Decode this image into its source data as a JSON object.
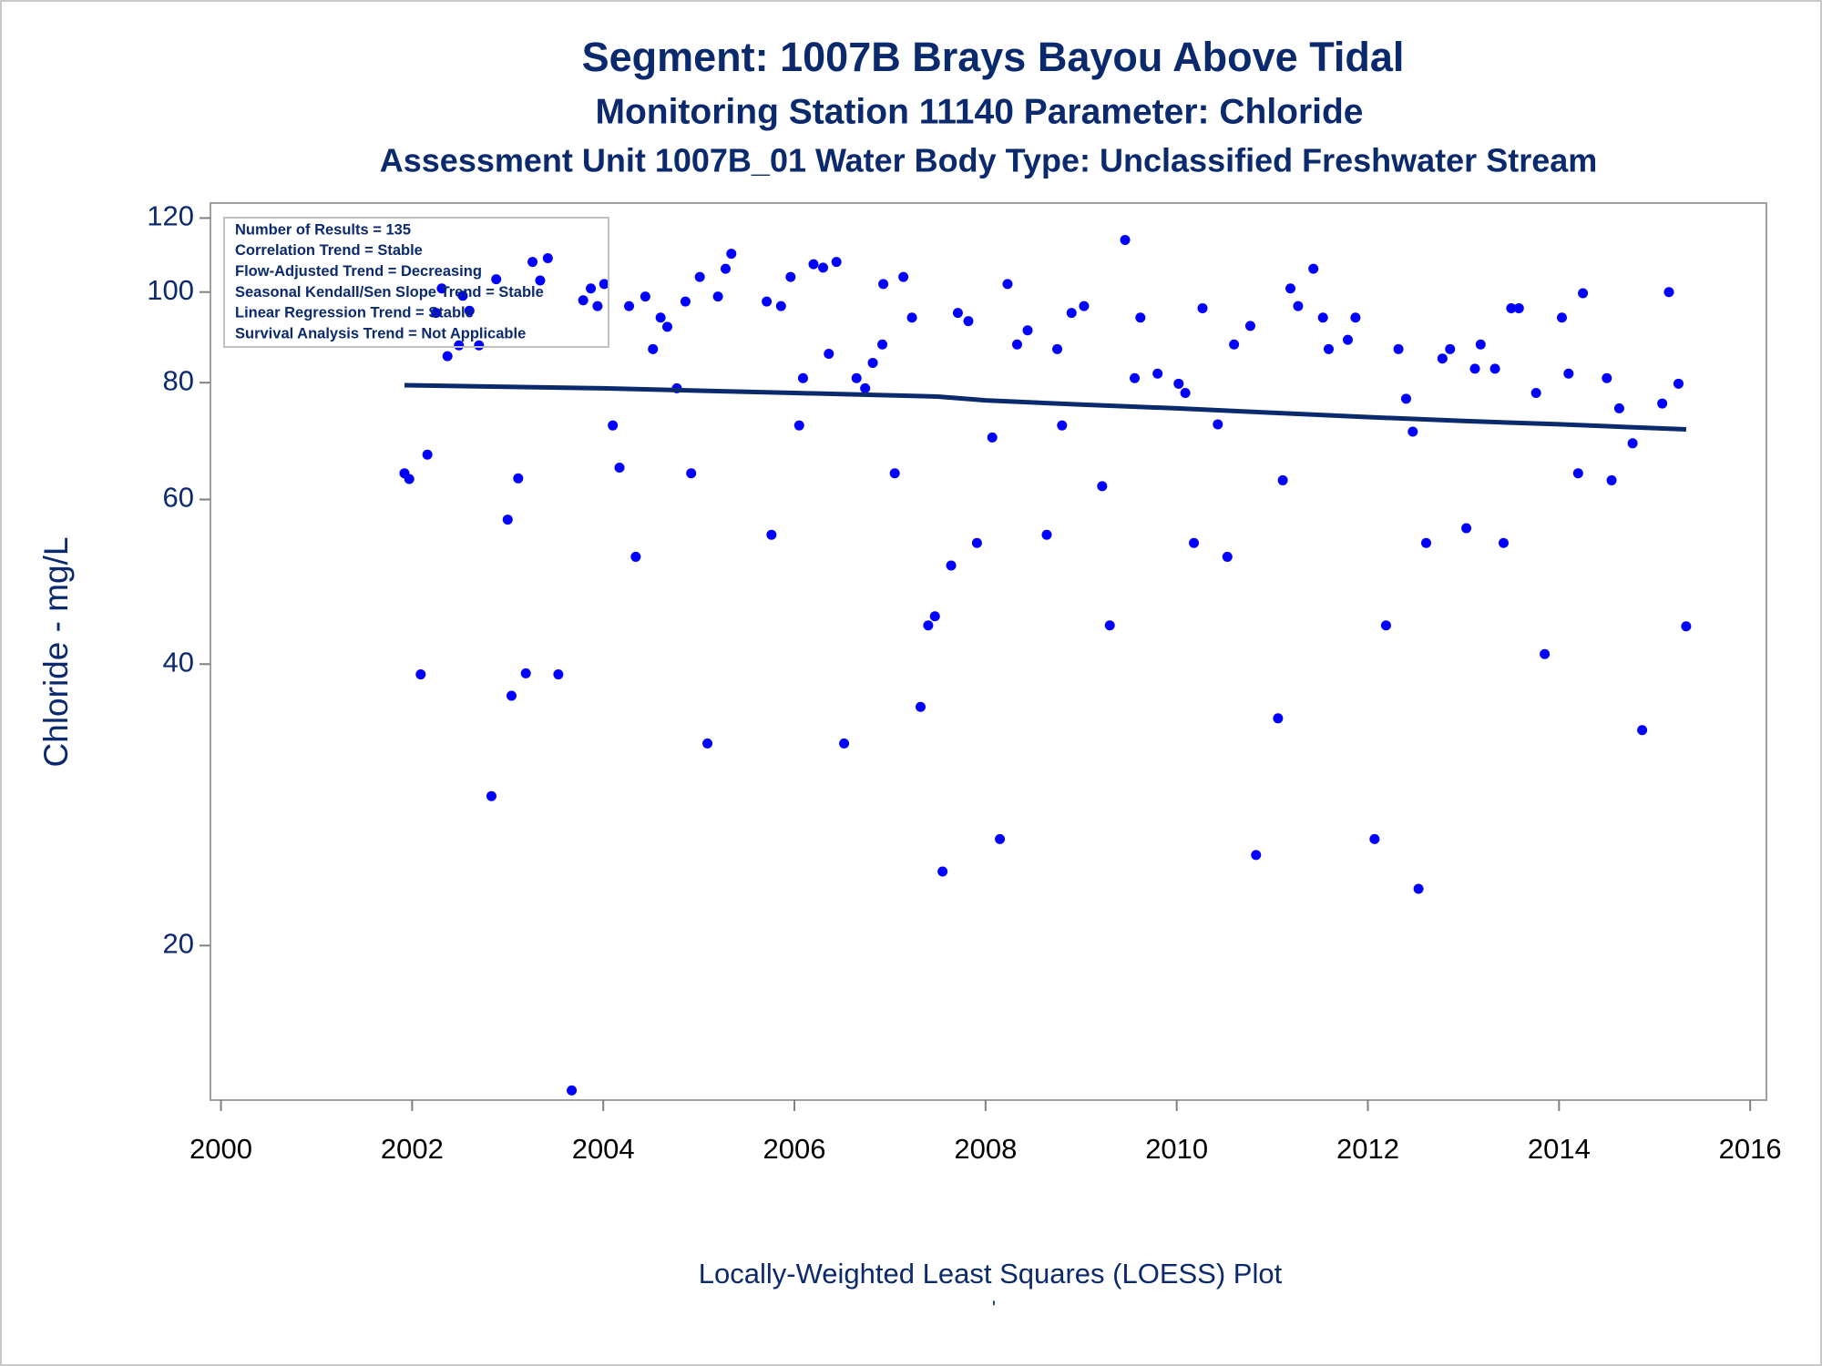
{
  "chart_data": {
    "type": "scatter",
    "title": "Segment: 1007B  Brays Bayou Above Tidal",
    "subtitle": "Monitoring Station 11140 Parameter: Chloride",
    "subtitle2": "Assessment Unit 1007B_01   Water Body Type: Unclassified Freshwater Stream",
    "y_label": "Chloride - mg/L",
    "footnote": "Locally-Weighted Least Squares (LOESS) Plot",
    "footnote_mark": "'",
    "stats_box": [
      "Number of Results = 135",
      "Correlation Trend = Stable",
      "Flow-Adjusted Trend = Decreasing",
      "Seasonal Kendall/Sen Slope Trend = Stable",
      "Linear Regression Trend = Stable",
      "Survival Analysis Trend = Not Applicable"
    ],
    "xlim": [
      1999.89,
      2016.17
    ],
    "xticks": [
      2000,
      2002,
      2004,
      2006,
      2008,
      2010,
      2012,
      2014,
      2016
    ],
    "ylim": [
      13.67,
      124.5
    ],
    "yticks": [
      20,
      40,
      60,
      80,
      100,
      120
    ],
    "ylog": true,
    "series": [
      {
        "type": "scatter",
        "color": "#0000ff",
        "x": [
          2001.92,
          2001.97,
          2002.09,
          2002.16,
          2002.25,
          2002.31,
          2002.37,
          2002.49,
          2002.53,
          2002.6,
          2002.7,
          2002.83,
          2002.88,
          2003.0,
          2003.04,
          2003.11,
          2003.19,
          2003.26,
          2003.34,
          2003.42,
          2003.53,
          2003.67,
          2003.79,
          2003.87,
          2003.94,
          2004.01,
          2004.1,
          2004.17,
          2004.27,
          2004.34,
          2004.44,
          2004.52,
          2004.6,
          2004.67,
          2004.77,
          2004.86,
          2004.92,
          2005.01,
          2005.09,
          2005.2,
          2005.28,
          2005.34,
          2005.71,
          2005.76,
          2005.86,
          2005.96,
          2006.05,
          2006.09,
          2006.2,
          2006.3,
          2006.36,
          2006.44,
          2006.52,
          2006.65,
          2006.74,
          2006.82,
          2006.92,
          2006.93,
          2007.05,
          2007.14,
          2007.23,
          2007.32,
          2007.4,
          2007.47,
          2007.55,
          2007.64,
          2007.71,
          2007.82,
          2007.91,
          2008.07,
          2008.15,
          2008.23,
          2008.33,
          2008.44,
          2008.64,
          2008.75,
          2008.8,
          2008.9,
          2009.03,
          2009.22,
          2009.3,
          2009.46,
          2009.56,
          2009.62,
          2009.8,
          2010.02,
          2010.09,
          2010.18,
          2010.27,
          2010.43,
          2010.53,
          2010.6,
          2010.77,
          2010.83,
          2011.06,
          2011.11,
          2011.19,
          2011.27,
          2011.43,
          2011.53,
          2011.59,
          2011.79,
          2011.87,
          2012.07,
          2012.19,
          2012.32,
          2012.4,
          2012.47,
          2012.53,
          2012.61,
          2012.78,
          2012.86,
          2013.03,
          2013.12,
          2013.18,
          2013.33,
          2013.42,
          2013.5,
          2013.58,
          2013.76,
          2013.85,
          2014.03,
          2014.1,
          2014.2,
          2014.25,
          2014.5,
          2014.55,
          2014.63,
          2014.77,
          2014.87,
          2015.08,
          2015.15,
          2015.25,
          2015.33
        ],
        "values": [
          64.0,
          63.1,
          39.0,
          67.0,
          95.0,
          100.9,
          85.4,
          87.7,
          99.1,
          95.5,
          87.7,
          28.9,
          103.2,
          57.1,
          37.0,
          63.2,
          39.1,
          107.7,
          102.9,
          108.7,
          39.0,
          14.0,
          98.0,
          100.9,
          96.6,
          102.0,
          72.0,
          64.9,
          96.6,
          52.1,
          98.9,
          86.9,
          93.9,
          91.8,
          78.9,
          97.7,
          64.0,
          103.8,
          32.9,
          98.9,
          105.9,
          109.9,
          97.7,
          55.0,
          96.6,
          103.8,
          72.0,
          80.9,
          107.1,
          106.2,
          85.9,
          107.7,
          32.9,
          80.9,
          78.9,
          84.0,
          87.9,
          102.0,
          64.0,
          103.8,
          93.9,
          36.0,
          44.0,
          45.0,
          24.0,
          51.0,
          95.0,
          93.1,
          53.9,
          69.9,
          26.0,
          102.0,
          87.9,
          91.0,
          55.0,
          86.9,
          72.0,
          95.0,
          96.6,
          62.0,
          44.0,
          113.7,
          80.9,
          93.9,
          81.8,
          79.8,
          78.0,
          53.9,
          96.1,
          72.2,
          52.1,
          87.9,
          92.0,
          25.0,
          35.0,
          62.9,
          100.9,
          96.6,
          105.9,
          93.9,
          86.9,
          88.9,
          93.9,
          26.0,
          44.0,
          86.9,
          76.9,
          70.9,
          23.0,
          53.9,
          84.9,
          86.9,
          55.9,
          82.8,
          87.9,
          82.8,
          53.9,
          96.1,
          96.1,
          78.0,
          41.0,
          93.9,
          81.8,
          64.0,
          99.7,
          80.9,
          62.9,
          75.1,
          68.9,
          34.0,
          76.0,
          100.0,
          79.8,
          43.9
        ]
      },
      {
        "type": "line",
        "color": "#0b2a6e",
        "x": [
          2001.92,
          2004.0,
          2006.0,
          2007.5,
          2008.0,
          2009.0,
          2010.0,
          2011.0,
          2012.0,
          2013.0,
          2014.0,
          2015.33
        ],
        "values": [
          79.5,
          78.9,
          78.0,
          77.3,
          76.6,
          75.8,
          75.1,
          74.3,
          73.5,
          72.8,
          72.2,
          71.3
        ]
      }
    ]
  }
}
